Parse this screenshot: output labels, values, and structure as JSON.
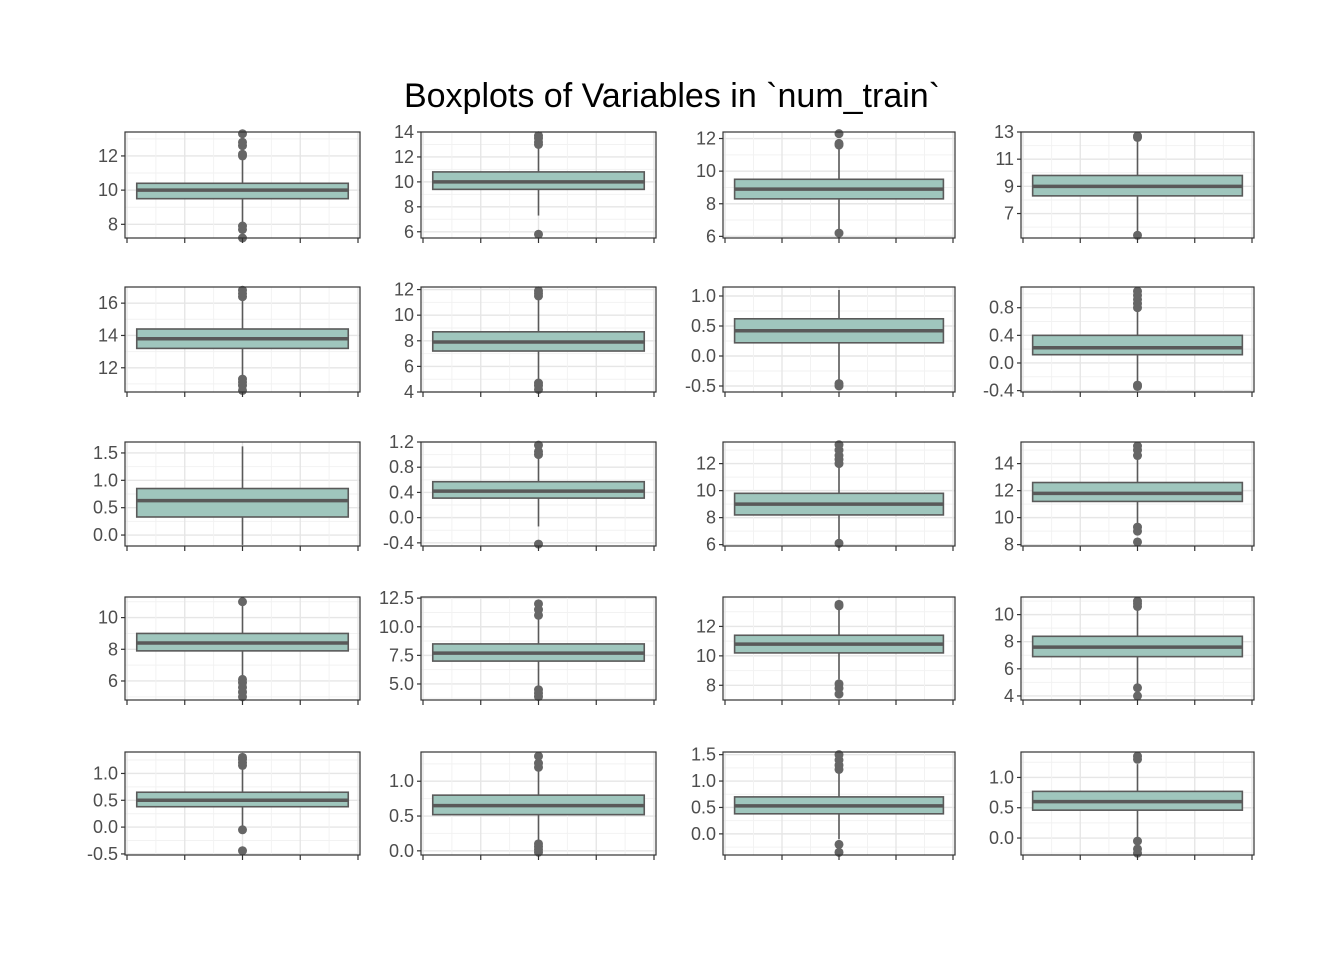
{
  "title": "Boxplots of Variables in `num_train`",
  "colors": {
    "box_fill": "#9fc6bd",
    "box_stroke": "#5a5a5a",
    "median": "#595959",
    "outlier": "#666666",
    "grid_major": "#e6e6e6",
    "grid_minor": "#f2f2f2",
    "panel_border": "#333333",
    "tick_text": "#4d4d4d"
  },
  "chart_data": [
    {
      "type": "box",
      "ylim": [
        7.2,
        13.4
      ],
      "yticks": [
        8,
        10,
        12
      ],
      "ytick_labels": [
        "8",
        "10",
        "12"
      ],
      "box": {
        "q1": 9.5,
        "median": 10.0,
        "q3": 10.4,
        "whisker_low": 8.1,
        "whisker_high": 11.8
      },
      "outliers": [
        7.2,
        7.7,
        7.9,
        12.0,
        12.1,
        12.6,
        12.8,
        13.3
      ],
      "grid": true
    },
    {
      "type": "box",
      "ylim": [
        5.5,
        14.0
      ],
      "yticks": [
        6,
        8,
        10,
        12,
        14
      ],
      "ytick_labels": [
        "6",
        "8",
        "10",
        "12",
        "14"
      ],
      "box": {
        "q1": 9.4,
        "median": 10.0,
        "q3": 10.8,
        "whisker_low": 7.3,
        "whisker_high": 12.8
      },
      "outliers": [
        5.8,
        13.0,
        13.2,
        13.5,
        13.7
      ],
      "grid": true
    },
    {
      "type": "box",
      "ylim": [
        5.9,
        12.4
      ],
      "yticks": [
        6,
        8,
        10,
        12
      ],
      "ytick_labels": [
        "6",
        "8",
        "10",
        "12"
      ],
      "box": {
        "q1": 8.3,
        "median": 8.9,
        "q3": 9.5,
        "whisker_low": 6.4,
        "whisker_high": 11.4
      },
      "outliers": [
        6.2,
        11.6,
        11.7,
        12.3
      ],
      "grid": true
    },
    {
      "type": "box",
      "ylim": [
        5.2,
        13.0
      ],
      "yticks": [
        7,
        9,
        11,
        13
      ],
      "ytick_labels": [
        "7",
        "9",
        "11",
        "13"
      ],
      "box": {
        "q1": 8.3,
        "median": 9.0,
        "q3": 9.8,
        "whisker_low": 5.6,
        "whisker_high": 12.4
      },
      "outliers": [
        5.4,
        12.6,
        12.7
      ],
      "grid": true
    },
    {
      "type": "box",
      "ylim": [
        10.5,
        17.0
      ],
      "yticks": [
        12,
        14,
        16
      ],
      "ytick_labels": [
        "12",
        "14",
        "16"
      ],
      "box": {
        "q1": 13.2,
        "median": 13.8,
        "q3": 14.4,
        "whisker_low": 11.5,
        "whisker_high": 16.2
      },
      "outliers": [
        10.6,
        10.9,
        11.1,
        11.3,
        16.4,
        16.6,
        16.8
      ],
      "grid": true
    },
    {
      "type": "box",
      "ylim": [
        4.0,
        12.2
      ],
      "yticks": [
        4,
        6,
        8,
        10,
        12
      ],
      "ytick_labels": [
        "4",
        "6",
        "8",
        "10",
        "12"
      ],
      "box": {
        "q1": 7.2,
        "median": 7.9,
        "q3": 8.7,
        "whisker_low": 4.9,
        "whisker_high": 11.2
      },
      "outliers": [
        4.2,
        4.5,
        4.7,
        11.5,
        11.7,
        11.9
      ],
      "grid": true
    },
    {
      "type": "box",
      "ylim": [
        -0.6,
        1.15
      ],
      "yticks": [
        -0.5,
        0.0,
        0.5,
        1.0
      ],
      "ytick_labels": [
        "-0.5",
        "0.0",
        "0.5",
        "1.0"
      ],
      "box": {
        "q1": 0.22,
        "median": 0.42,
        "q3": 0.62,
        "whisker_low": -0.42,
        "whisker_high": 1.1
      },
      "outliers": [
        -0.46,
        -0.5
      ],
      "grid": true
    },
    {
      "type": "box",
      "ylim": [
        -0.42,
        1.1
      ],
      "yticks": [
        -0.4,
        0.0,
        0.4,
        0.8
      ],
      "ytick_labels": [
        "-0.4",
        "0.0",
        "0.4",
        "0.8"
      ],
      "box": {
        "q1": 0.12,
        "median": 0.22,
        "q3": 0.4,
        "whisker_low": -0.28,
        "whisker_high": 0.75
      },
      "outliers": [
        -0.34,
        -0.32,
        0.8,
        0.86,
        0.92,
        0.98,
        1.04
      ],
      "grid": true
    },
    {
      "type": "box",
      "ylim": [
        -0.2,
        1.7
      ],
      "yticks": [
        0.0,
        0.5,
        1.0,
        1.5
      ],
      "ytick_labels": [
        "0.0",
        "0.5",
        "1.0",
        "1.5"
      ],
      "box": {
        "q1": 0.33,
        "median": 0.63,
        "q3": 0.85,
        "whisker_low": -0.18,
        "whisker_high": 1.62
      },
      "outliers": [],
      "grid": true
    },
    {
      "type": "box",
      "ylim": [
        -0.45,
        1.2
      ],
      "yticks": [
        -0.4,
        0.0,
        0.4,
        0.8,
        1.2
      ],
      "ytick_labels": [
        "-0.4",
        "0.0",
        "0.4",
        "0.8",
        "1.2"
      ],
      "box": {
        "q1": 0.31,
        "median": 0.42,
        "q3": 0.57,
        "whisker_low": -0.14,
        "whisker_high": 0.95
      },
      "outliers": [
        -0.42,
        1.0,
        1.05,
        1.15
      ],
      "grid": true
    },
    {
      "type": "box",
      "ylim": [
        5.9,
        13.6
      ],
      "yticks": [
        6,
        8,
        10,
        12
      ],
      "ytick_labels": [
        "6",
        "8",
        "10",
        "12"
      ],
      "box": {
        "q1": 8.2,
        "median": 9.0,
        "q3": 9.8,
        "whisker_low": 6.4,
        "whisker_high": 11.7
      },
      "outliers": [
        6.1,
        12.0,
        12.3,
        12.6,
        13.0,
        13.4
      ],
      "grid": true
    },
    {
      "type": "box",
      "ylim": [
        7.9,
        15.6
      ],
      "yticks": [
        8,
        10,
        12,
        14
      ],
      "ytick_labels": [
        "8",
        "10",
        "12",
        "14"
      ],
      "box": {
        "q1": 11.2,
        "median": 11.8,
        "q3": 12.6,
        "whisker_low": 9.4,
        "whisker_high": 14.4
      },
      "outliers": [
        8.2,
        9.0,
        9.3,
        14.6,
        15.0,
        15.3
      ],
      "grid": true
    },
    {
      "type": "box",
      "ylim": [
        4.8,
        11.3
      ],
      "yticks": [
        6,
        8,
        10
      ],
      "ytick_labels": [
        "6",
        "8",
        "10"
      ],
      "box": {
        "q1": 7.9,
        "median": 8.4,
        "q3": 9.0,
        "whisker_low": 6.3,
        "whisker_high": 10.8
      },
      "outliers": [
        5.0,
        5.3,
        5.6,
        5.9,
        6.1,
        11.0
      ],
      "grid": true
    },
    {
      "type": "box",
      "ylim": [
        3.6,
        12.6
      ],
      "yticks": [
        5.0,
        7.5,
        10.0,
        12.5
      ],
      "ytick_labels": [
        "5.0",
        "7.5",
        "10.0",
        "12.5"
      ],
      "box": {
        "q1": 7.0,
        "median": 7.7,
        "q3": 8.5,
        "whisker_low": 4.7,
        "whisker_high": 10.8
      },
      "outliers": [
        3.9,
        4.2,
        4.5,
        11.0,
        11.5,
        12.0
      ],
      "grid": true
    },
    {
      "type": "box",
      "ylim": [
        7.0,
        14.0
      ],
      "yticks": [
        8,
        10,
        12
      ],
      "ytick_labels": [
        "8",
        "10",
        "12"
      ],
      "box": {
        "q1": 10.2,
        "median": 10.8,
        "q3": 11.4,
        "whisker_low": 8.4,
        "whisker_high": 13.2
      },
      "outliers": [
        7.4,
        7.8,
        8.1,
        13.4,
        13.5
      ],
      "grid": true
    },
    {
      "type": "box",
      "ylim": [
        3.7,
        11.3
      ],
      "yticks": [
        4,
        6,
        8,
        10
      ],
      "ytick_labels": [
        "4",
        "6",
        "8",
        "10"
      ],
      "box": {
        "q1": 6.9,
        "median": 7.6,
        "q3": 8.4,
        "whisker_low": 4.9,
        "whisker_high": 10.4
      },
      "outliers": [
        4.0,
        4.6,
        10.6,
        10.8,
        11.0
      ],
      "grid": true
    },
    {
      "type": "box",
      "ylim": [
        -0.52,
        1.4
      ],
      "yticks": [
        -0.5,
        0.0,
        0.5,
        1.0
      ],
      "ytick_labels": [
        "-0.5",
        "0.0",
        "0.5",
        "1.0"
      ],
      "box": {
        "q1": 0.38,
        "median": 0.5,
        "q3": 0.65,
        "whisker_low": 0.0,
        "whisker_high": 1.1
      },
      "outliers": [
        -0.44,
        -0.05,
        1.15,
        1.2,
        1.26,
        1.3
      ],
      "grid": true
    },
    {
      "type": "box",
      "ylim": [
        -0.06,
        1.42
      ],
      "yticks": [
        0.0,
        0.5,
        1.0
      ],
      "ytick_labels": [
        "0.0",
        "0.5",
        "1.0"
      ],
      "box": {
        "q1": 0.52,
        "median": 0.65,
        "q3": 0.8,
        "whisker_low": 0.14,
        "whisker_high": 1.18
      },
      "outliers": [
        -0.02,
        0.02,
        0.06,
        0.1,
        1.2,
        1.26,
        1.36
      ],
      "grid": true
    },
    {
      "type": "box",
      "ylim": [
        -0.4,
        1.55
      ],
      "yticks": [
        0.0,
        0.5,
        1.0,
        1.5
      ],
      "ytick_labels": [
        "0.0",
        "0.5",
        "1.0",
        "1.5"
      ],
      "box": {
        "q1": 0.38,
        "median": 0.53,
        "q3": 0.7,
        "whisker_low": -0.1,
        "whisker_high": 1.18
      },
      "outliers": [
        -0.35,
        -0.2,
        1.22,
        1.3,
        1.4,
        1.5
      ],
      "grid": true
    },
    {
      "type": "box",
      "ylim": [
        -0.28,
        1.42
      ],
      "yticks": [
        0.0,
        0.5,
        1.0
      ],
      "ytick_labels": [
        "0.0",
        "0.5",
        "1.0"
      ],
      "box": {
        "q1": 0.46,
        "median": 0.6,
        "q3": 0.77,
        "whisker_low": 0.0,
        "whisker_high": 1.22
      },
      "outliers": [
        -0.25,
        -0.18,
        -0.05,
        1.3,
        1.35
      ],
      "grid": true
    }
  ]
}
